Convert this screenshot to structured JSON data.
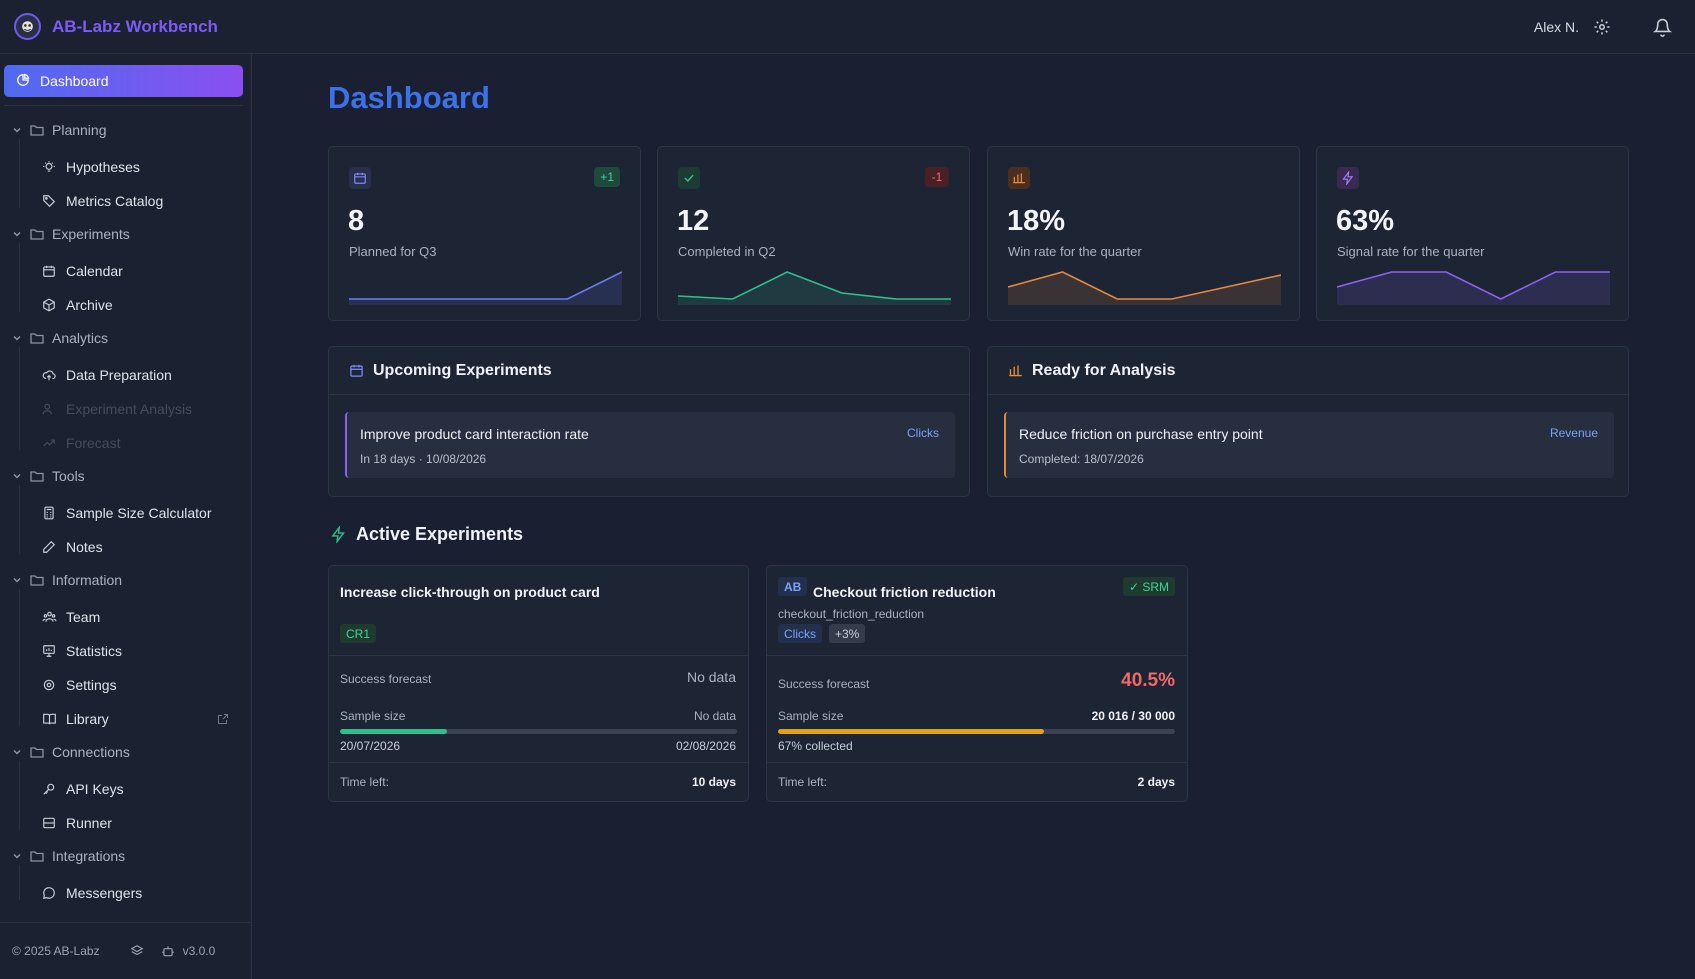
{
  "app": {
    "title": "AB-Labz Workbench",
    "user": "Alex N."
  },
  "sidebar": {
    "active": {
      "label": "Dashboard"
    },
    "groups": {
      "planning": {
        "label": "Planning",
        "items": {
          "hypotheses": "Hypotheses",
          "metrics": "Metrics Catalog"
        }
      },
      "experiments": {
        "label": "Experiments",
        "items": {
          "calendar": "Calendar",
          "archive": "Archive"
        }
      },
      "analytics": {
        "label": "Analytics",
        "items": {
          "dataprep": "Data Preparation",
          "analysis": "Experiment Analysis",
          "forecast": "Forecast"
        }
      },
      "tools": {
        "label": "Tools",
        "items": {
          "sample": "Sample Size Calculator",
          "notes": "Notes"
        }
      },
      "information": {
        "label": "Information",
        "items": {
          "team": "Team",
          "statistics": "Statistics",
          "settings": "Settings",
          "library": "Library"
        }
      },
      "connections": {
        "label": "Connections",
        "items": {
          "apikeys": "API Keys",
          "runner": "Runner"
        }
      },
      "integrations": {
        "label": "Integrations",
        "items": {
          "messengers": "Messengers"
        }
      }
    },
    "footer": {
      "copyright": "© 2025 AB-Labz",
      "version": "v3.0.0"
    }
  },
  "page": {
    "title": "Dashboard"
  },
  "stats": [
    {
      "value": "8",
      "label": "Planned for Q3",
      "delta": "+1",
      "color": "#6b7cf5",
      "spark": [
        0,
        0,
        0,
        0,
        0,
        0.9
      ]
    },
    {
      "value": "12",
      "label": "Completed in Q2",
      "delta": "-1",
      "color": "#2fbf8f",
      "spark": [
        0.1,
        0,
        0.9,
        0.2,
        0,
        0
      ]
    },
    {
      "value": "18%",
      "label": "Win rate for the quarter",
      "color": "#e38a3c",
      "spark": [
        0.4,
        0.9,
        0,
        0,
        0.4,
        0.8
      ]
    },
    {
      "value": "63%",
      "label": "Signal rate for the quarter",
      "color": "#8a63f0",
      "spark": [
        0.4,
        0.9,
        0.9,
        0,
        0.9,
        0.9
      ]
    }
  ],
  "upcoming": {
    "title": "Upcoming Experiments",
    "item": {
      "title": "Improve product card interaction rate",
      "sub": "In 18 days · 10/08/2026",
      "tag": "Clicks"
    }
  },
  "ready": {
    "title": "Ready for Analysis",
    "item": {
      "title": "Reduce friction on purchase entry point",
      "sub": "Completed: 18/07/2026",
      "tag": "Revenue"
    }
  },
  "active": {
    "title": "Active Experiments",
    "cards": [
      {
        "title": "Increase click-through on product card",
        "chip": "CR1",
        "forecast_label": "Success forecast",
        "forecast_value": "No data",
        "sample_label": "Sample size",
        "sample_value": "No data",
        "progress": 0.27,
        "date_start": "20/07/2026",
        "date_end": "02/08/2026",
        "time_label": "Time left:",
        "time_value": "10 days"
      },
      {
        "badge": "AB",
        "title": "Checkout friction reduction",
        "subtitle": "checkout_friction_reduction",
        "srm": "✓ SRM",
        "chip": "Clicks",
        "chip2": "+3%",
        "forecast_label": "Success forecast",
        "forecast_value": "40.5%",
        "sample_label": "Sample size",
        "sample_value": "20 016 / 30 000",
        "progress": 0.67,
        "collected": "67% collected",
        "time_label": "Time left:",
        "time_value": "2 days"
      }
    ]
  }
}
